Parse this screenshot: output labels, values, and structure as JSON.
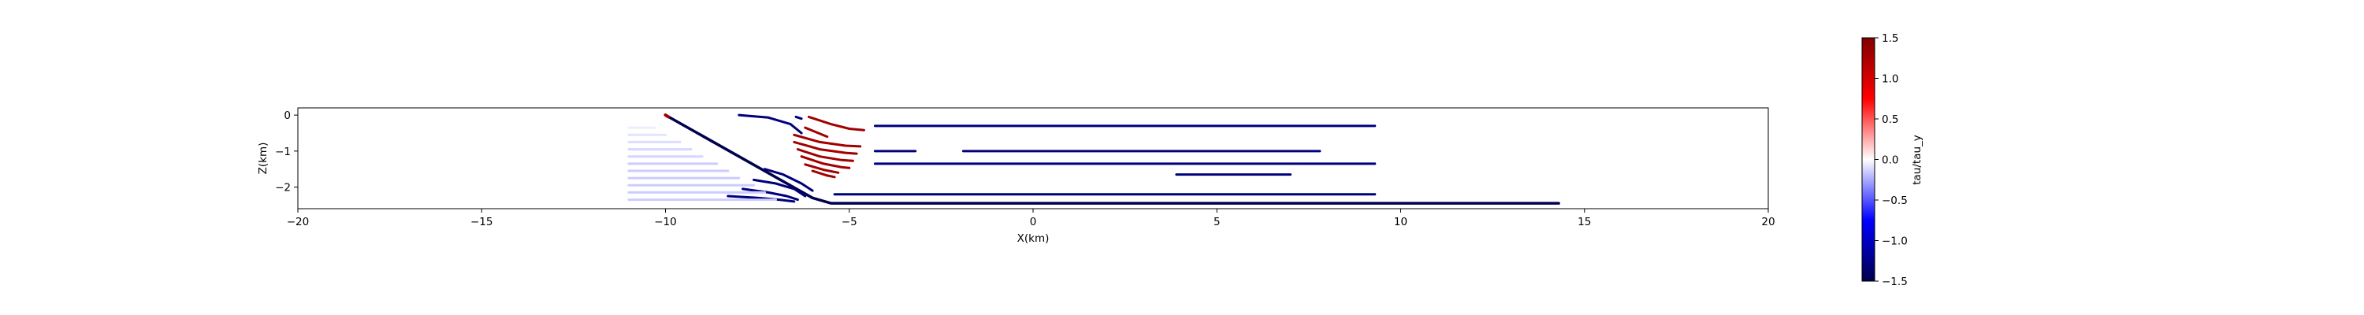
{
  "chart_data": {
    "type": "line",
    "title": "",
    "xlabel": "X(km)",
    "ylabel": "Z(km)",
    "xlim": [
      -20,
      20
    ],
    "ylim": [
      -2.6,
      0.2
    ],
    "xticks": [
      -20,
      -15,
      -10,
      -5,
      0,
      5,
      10,
      15,
      20
    ],
    "xtick_labels": [
      "−20",
      "−15",
      "−10",
      "−5",
      "0",
      "5",
      "10",
      "15",
      "20"
    ],
    "yticks": [
      0,
      -1,
      -2
    ],
    "ytick_labels": [
      "0",
      "−1",
      "−2"
    ],
    "grid": false,
    "colorbar": {
      "label": "tau/tau_y",
      "cmap": "seismic",
      "min": -1.5,
      "max": 1.5,
      "ticks": [
        1.5,
        1.0,
        0.5,
        0.0,
        -0.5,
        -1.0,
        -1.5
      ],
      "tick_labels": [
        "1.5",
        "1.0",
        "0.5",
        "0.0",
        "−0.5",
        "−1.0",
        "−1.5"
      ]
    },
    "series": [
      {
        "x": [
          -10.0,
          -8.0,
          -6.0,
          -5.5,
          14.3
        ],
        "y": [
          0.0,
          -1.15,
          -2.3,
          -2.45,
          -2.45
        ],
        "value": -1.5,
        "stroke": 3.5
      },
      {
        "x": [
          -10.0,
          -9.92
        ],
        "y": [
          0.0,
          -0.05
        ],
        "value": 1.3,
        "stroke": 4
      },
      {
        "x": [
          -8.0,
          -7.2,
          -6.6,
          -6.3
        ],
        "y": [
          0.0,
          -0.07,
          -0.25,
          -0.5
        ],
        "value": -1.3,
        "stroke": 3
      },
      {
        "x": [
          -6.45,
          -6.3
        ],
        "y": [
          -0.05,
          -0.1
        ],
        "value": -1.3,
        "stroke": 3
      },
      {
        "x": [
          -6.2,
          -5.6
        ],
        "y": [
          -0.35,
          -0.6
        ],
        "value": 1.3,
        "stroke": 3
      },
      {
        "x": [
          -6.1,
          -5.5,
          -5.0,
          -4.6
        ],
        "y": [
          -0.05,
          -0.25,
          -0.38,
          -0.42
        ],
        "value": 1.3,
        "stroke": 3
      },
      {
        "x": [
          -6.5,
          -5.8,
          -5.1,
          -4.7
        ],
        "y": [
          -0.55,
          -0.75,
          -0.85,
          -0.87
        ],
        "value": 1.3,
        "stroke": 3
      },
      {
        "x": [
          -6.5,
          -5.8,
          -5.1,
          -4.8
        ],
        "y": [
          -0.75,
          -0.95,
          -1.05,
          -1.07
        ],
        "value": 1.3,
        "stroke": 3
      },
      {
        "x": [
          -6.4,
          -5.8,
          -5.2,
          -4.9
        ],
        "y": [
          -0.95,
          -1.15,
          -1.25,
          -1.27
        ],
        "value": 1.3,
        "stroke": 3
      },
      {
        "x": [
          -6.3,
          -5.7,
          -5.2,
          -5.0
        ],
        "y": [
          -1.15,
          -1.35,
          -1.45,
          -1.47
        ],
        "value": 1.3,
        "stroke": 3
      },
      {
        "x": [
          -6.2,
          -5.7,
          -5.3
        ],
        "y": [
          -1.37,
          -1.52,
          -1.6
        ],
        "value": 1.3,
        "stroke": 3
      },
      {
        "x": [
          -6.0,
          -5.6,
          -5.4
        ],
        "y": [
          -1.55,
          -1.68,
          -1.72
        ],
        "value": 1.3,
        "stroke": 3
      },
      {
        "x": [
          -7.3,
          -6.8,
          -6.3,
          -6.0
        ],
        "y": [
          -1.5,
          -1.65,
          -1.9,
          -2.1
        ],
        "value": -1.3,
        "stroke": 3
      },
      {
        "x": [
          -7.6,
          -7.0,
          -6.5,
          -6.2
        ],
        "y": [
          -1.8,
          -1.9,
          -2.05,
          -2.25
        ],
        "value": -1.3,
        "stroke": 3
      },
      {
        "x": [
          -7.9,
          -7.2,
          -6.7,
          -6.4
        ],
        "y": [
          -2.05,
          -2.15,
          -2.25,
          -2.35
        ],
        "value": -1.3,
        "stroke": 3
      },
      {
        "x": [
          -8.3,
          -7.5,
          -6.9,
          -6.5
        ],
        "y": [
          -2.25,
          -2.3,
          -2.35,
          -2.4
        ],
        "value": -1.3,
        "stroke": 3
      },
      {
        "x": [
          -11.0,
          -10.3
        ],
        "y": [
          -0.35,
          -0.35
        ],
        "value": -0.05,
        "stroke": 3
      },
      {
        "x": [
          -11.0,
          -10.0
        ],
        "y": [
          -0.55,
          -0.55
        ],
        "value": -0.08,
        "stroke": 3
      },
      {
        "x": [
          -11.0,
          -9.6
        ],
        "y": [
          -0.75,
          -0.75
        ],
        "value": -0.1,
        "stroke": 3
      },
      {
        "x": [
          -11.0,
          -9.3
        ],
        "y": [
          -0.95,
          -0.95
        ],
        "value": -0.12,
        "stroke": 3
      },
      {
        "x": [
          -11.0,
          -9.0
        ],
        "y": [
          -1.15,
          -1.15
        ],
        "value": -0.12,
        "stroke": 3
      },
      {
        "x": [
          -11.0,
          -8.6
        ],
        "y": [
          -1.35,
          -1.35
        ],
        "value": -0.15,
        "stroke": 3
      },
      {
        "x": [
          -11.0,
          -8.3
        ],
        "y": [
          -1.55,
          -1.55
        ],
        "value": -0.15,
        "stroke": 3
      },
      {
        "x": [
          -11.0,
          -8.0
        ],
        "y": [
          -1.75,
          -1.75
        ],
        "value": -0.15,
        "stroke": 3
      },
      {
        "x": [
          -11.0,
          -7.6
        ],
        "y": [
          -1.95,
          -1.95
        ],
        "value": -0.15,
        "stroke": 3
      },
      {
        "x": [
          -11.0,
          -7.3
        ],
        "y": [
          -2.15,
          -2.15
        ],
        "value": -0.15,
        "stroke": 3
      },
      {
        "x": [
          -11.0,
          -7.0
        ],
        "y": [
          -2.35,
          -2.35
        ],
        "value": -0.15,
        "stroke": 3
      },
      {
        "x": [
          -4.3,
          9.3
        ],
        "y": [
          -0.3,
          -0.3
        ],
        "value": -1.3,
        "stroke": 3
      },
      {
        "x": [
          -4.3,
          -3.2
        ],
        "y": [
          -1.0,
          -1.0
        ],
        "value": -1.3,
        "stroke": 3
      },
      {
        "x": [
          -1.9,
          7.8
        ],
        "y": [
          -1.0,
          -1.0
        ],
        "value": -1.3,
        "stroke": 3
      },
      {
        "x": [
          -4.3,
          9.3
        ],
        "y": [
          -1.35,
          -1.35
        ],
        "value": -1.3,
        "stroke": 3
      },
      {
        "x": [
          3.9,
          7.0
        ],
        "y": [
          -1.65,
          -1.65
        ],
        "value": -1.3,
        "stroke": 3
      },
      {
        "x": [
          -5.4,
          9.3
        ],
        "y": [
          -2.2,
          -2.2
        ],
        "value": -1.3,
        "stroke": 3
      }
    ]
  }
}
